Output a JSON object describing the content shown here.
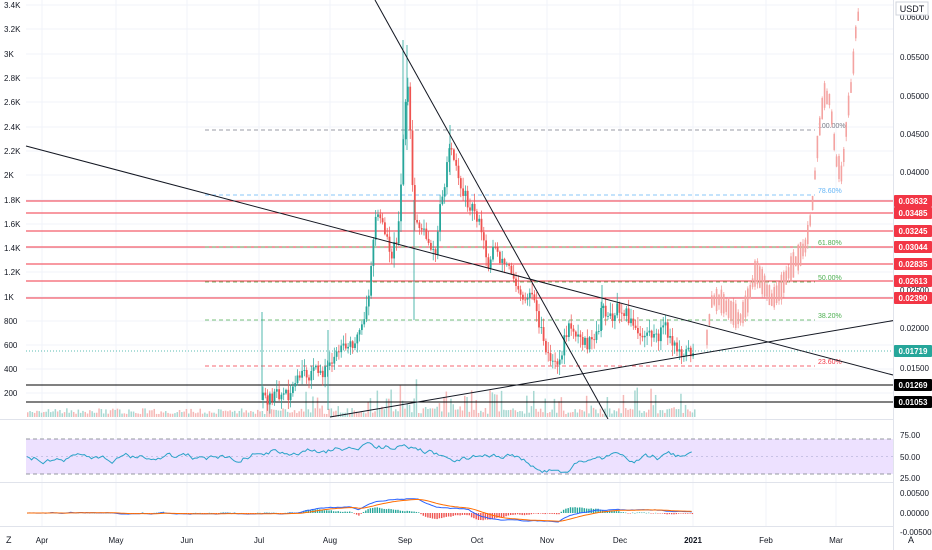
{
  "currency_label": "USDT",
  "colors": {
    "up": "#26a69a",
    "down": "#ef5350",
    "projection": "#f4a3a1",
    "resistance": "#f23645",
    "support": "#000000",
    "rsi": "#2aa2c8",
    "rsi_band": "#ede1ff",
    "macd": "#2962ff",
    "signal": "#ff6d00",
    "trendline": "#131722",
    "badge_red": "#f23645",
    "badge_black": "#000000",
    "badge_current": "#26a69a"
  },
  "chart_data": {
    "type": "candlestick",
    "left_axis_ticks": [
      "3.4K",
      "3.2K",
      "3K",
      "2.8K",
      "2.6K",
      "2.4K",
      "2.2K",
      "2K",
      "1.8K",
      "1.6K",
      "1.4K",
      "1.2K",
      "1K",
      "800",
      "600",
      "400",
      "200"
    ],
    "right_axis_ticks": [
      "0.06000",
      "0.05500",
      "0.05000",
      "0.04500",
      "0.04000",
      "0.02000",
      "0.01500"
    ],
    "time_labels": [
      "Apr",
      "May",
      "Jun",
      "Jul",
      "Aug",
      "Sep",
      "Oct",
      "Nov",
      "Dec",
      "2021",
      "Feb",
      "Mar"
    ],
    "price_badges": [
      {
        "label": "0.03632",
        "kind": "red"
      },
      {
        "label": "0.03485",
        "kind": "red"
      },
      {
        "label": "0.03245",
        "kind": "red"
      },
      {
        "label": "0.03044",
        "kind": "red"
      },
      {
        "label": "0.02835",
        "kind": "red"
      },
      {
        "label": "0.02613",
        "kind": "red"
      },
      {
        "label": "0.02390",
        "kind": "red"
      },
      {
        "label": "0.01719",
        "kind": "current"
      },
      {
        "label": "0.01269",
        "kind": "black"
      },
      {
        "label": "0.01053",
        "kind": "black"
      }
    ],
    "hidden_tick_under_badges": "0.02500",
    "fib_levels": [
      {
        "label": "100.00%",
        "color": "#787b86"
      },
      {
        "label": "78.60%",
        "color": "#64b5f6"
      },
      {
        "label": "61.80%",
        "color": "#4caf50"
      },
      {
        "label": "50.00%",
        "color": "#4caf50"
      },
      {
        "label": "38.20%",
        "color": "#4caf50"
      },
      {
        "label": "23.60%",
        "color": "#f23645"
      }
    ],
    "rsi": {
      "ticks": [
        "75.00",
        "50.00",
        "25.00"
      ],
      "upper": 70,
      "lower": 30
    },
    "macd": {
      "ticks": [
        "0.00500",
        "0.00000",
        "-0.00500"
      ]
    },
    "corner_labels": {
      "left": "Z",
      "right": "A"
    }
  }
}
